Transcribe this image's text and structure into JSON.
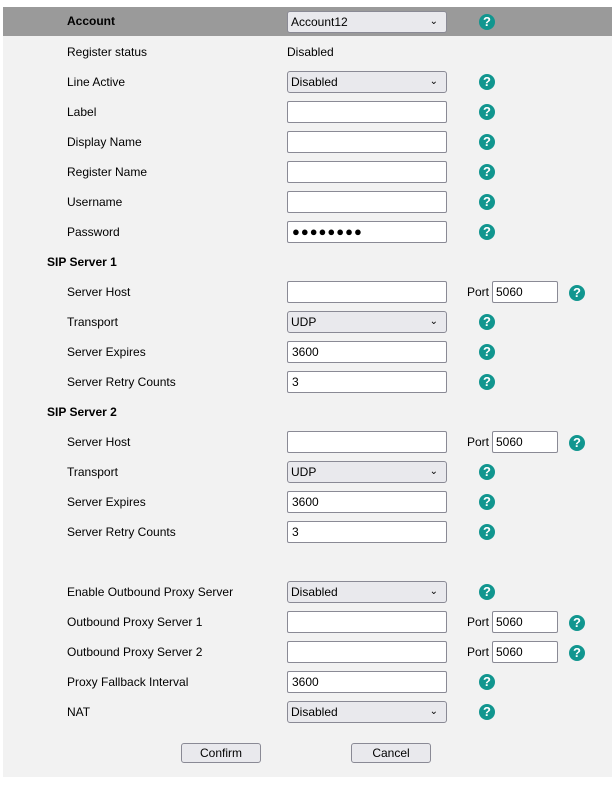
{
  "colors": {
    "header_bg": "#9a9a9a",
    "panel_bg": "#f2f2f2",
    "help_icon": "#11968f"
  },
  "rows": [
    {
      "type": "header",
      "label": "Account",
      "control": "select",
      "value": "Account12",
      "help": true
    },
    {
      "type": "field",
      "label": "Register status",
      "control": "static",
      "value": "Disabled"
    },
    {
      "type": "field",
      "label": "Line Active",
      "control": "select",
      "value": "Disabled",
      "help": true
    },
    {
      "type": "field",
      "label": "Label",
      "control": "input",
      "value": "",
      "help": true
    },
    {
      "type": "field",
      "label": "Display Name",
      "control": "input",
      "value": "",
      "help": true
    },
    {
      "type": "field",
      "label": "Register Name",
      "control": "input",
      "value": "",
      "help": true
    },
    {
      "type": "field",
      "label": "Username",
      "control": "input",
      "value": "",
      "help": true
    },
    {
      "type": "field",
      "label": "Password",
      "control": "password",
      "value": "●●●●●●●●",
      "help": true
    },
    {
      "type": "section",
      "label": "SIP Server 1"
    },
    {
      "type": "field",
      "label": "Server Host",
      "control": "input",
      "value": "",
      "port_label": "Port",
      "port": "5060",
      "help": true
    },
    {
      "type": "field",
      "label": "Transport",
      "control": "select",
      "value": "UDP",
      "help": true
    },
    {
      "type": "field",
      "label": "Server Expires",
      "control": "input",
      "value": "3600",
      "help": true
    },
    {
      "type": "field",
      "label": "Server Retry Counts",
      "control": "input",
      "value": "3",
      "help": true
    },
    {
      "type": "section",
      "label": "SIP Server 2"
    },
    {
      "type": "field",
      "label": "Server Host",
      "control": "input",
      "value": "",
      "port_label": "Port",
      "port": "5060",
      "help": true
    },
    {
      "type": "field",
      "label": "Transport",
      "control": "select",
      "value": "UDP",
      "help": true
    },
    {
      "type": "field",
      "label": "Server Expires",
      "control": "input",
      "value": "3600",
      "help": true
    },
    {
      "type": "field",
      "label": "Server Retry Counts",
      "control": "input",
      "value": "3",
      "help": true
    },
    {
      "type": "blank"
    },
    {
      "type": "field",
      "label": "Enable Outbound Proxy Server",
      "control": "select",
      "value": "Disabled",
      "help": true
    },
    {
      "type": "field",
      "label": "Outbound Proxy Server 1",
      "control": "input",
      "value": "",
      "port_label": "Port",
      "port": "5060",
      "help": true
    },
    {
      "type": "field",
      "label": "Outbound Proxy Server 2",
      "control": "input",
      "value": "",
      "port_label": "Port",
      "port": "5060",
      "help": true
    },
    {
      "type": "field",
      "label": "Proxy Fallback Interval",
      "control": "input",
      "value": "3600",
      "help": true
    },
    {
      "type": "field",
      "label": "NAT",
      "control": "select",
      "value": "Disabled",
      "help": true
    }
  ],
  "help_glyph": "?",
  "chevron_glyph": "⌄",
  "buttons": {
    "confirm": "Confirm",
    "cancel": "Cancel"
  }
}
